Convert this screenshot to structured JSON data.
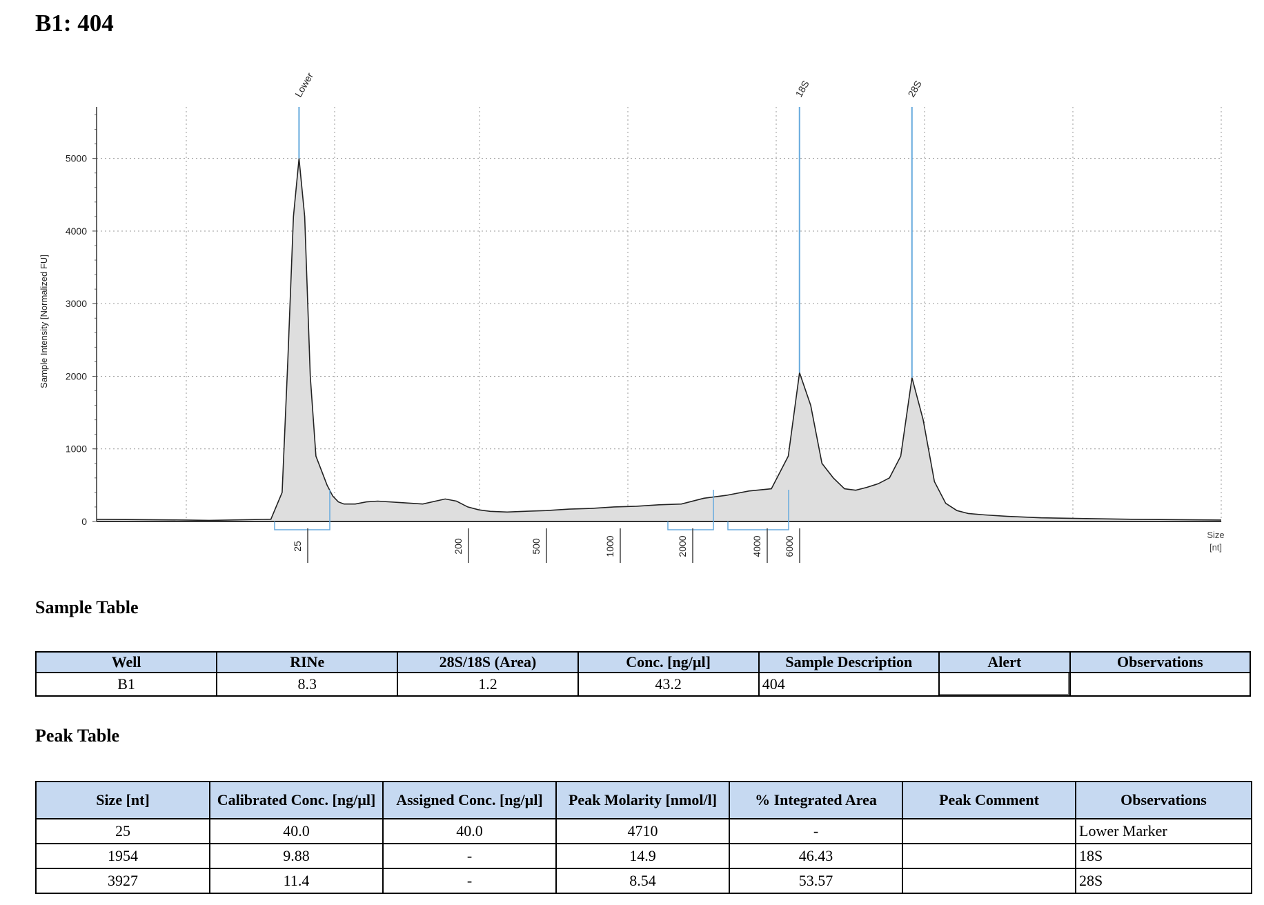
{
  "title": "B1: 404",
  "chart_data": {
    "type": "line",
    "title": "",
    "ylabel": "Sample Intensity [Normalized FU]",
    "xlabel": "Size\n[nt]",
    "xlabel_lines": [
      "Size",
      "[nt]"
    ],
    "ylim": [
      0,
      5700
    ],
    "y_ticks": [
      0,
      1000,
      2000,
      3000,
      4000,
      5000
    ],
    "x_ticks": [
      "25",
      "200",
      "500",
      "1000",
      "2000",
      "4000",
      "6000"
    ],
    "grid": true,
    "series": [
      {
        "values_x_percent_of_axis": [
          0,
          8,
          10,
          15.5,
          16.5,
          17,
          17.5,
          18,
          18.5,
          19,
          19.5,
          20,
          20.5,
          21,
          21.5,
          22,
          23,
          24,
          25,
          27,
          29,
          31,
          32,
          33,
          34,
          35,
          36.5,
          38,
          40,
          42,
          44,
          46,
          48,
          50,
          52,
          54,
          56,
          58,
          60,
          61.5,
          62.5,
          63.5,
          64.5,
          65.5,
          66.5,
          67.5,
          68.5,
          69.5,
          70.5,
          71.5,
          72.5,
          73.5,
          74.5,
          75.5,
          76.5,
          77.5,
          79,
          81,
          84,
          88,
          92,
          100
        ],
        "values": [
          30,
          20,
          15,
          30,
          400,
          2200,
          4200,
          5000,
          4200,
          2000,
          900,
          700,
          500,
          350,
          270,
          240,
          240,
          270,
          280,
          260,
          240,
          310,
          280,
          200,
          160,
          140,
          130,
          140,
          150,
          170,
          180,
          200,
          210,
          230,
          240,
          320,
          360,
          420,
          450,
          900,
          2050,
          1600,
          800,
          600,
          450,
          430,
          470,
          520,
          600,
          900,
          1980,
          1400,
          550,
          250,
          150,
          110,
          90,
          70,
          50,
          40,
          30,
          20
        ]
      }
    ],
    "peak_labels": [
      "Lower",
      "18S",
      "28S"
    ],
    "peak_positions": [
      18,
      62.5,
      72.5
    ],
    "peak_heights": [
      5000,
      2050,
      1980
    ]
  },
  "sample_table": {
    "heading": "Sample Table",
    "headers": [
      "Well",
      "RINe",
      "28S/18S (Area)",
      "Conc. [ng/µl]",
      "Sample Description",
      "Alert",
      "Observations"
    ],
    "rows": [
      [
        "B1",
        "8.3",
        "1.2",
        "43.2",
        "404",
        "",
        ""
      ]
    ]
  },
  "peak_table": {
    "heading": "Peak Table",
    "headers": [
      "Size [nt]",
      "Calibrated Conc. [ng/µl]",
      "Assigned Conc. [ng/µl]",
      "Peak Molarity [nmol/l]",
      "% Integrated Area",
      "Peak Comment",
      "Observations"
    ],
    "rows": [
      [
        "25",
        "40.0",
        "40.0",
        "4710",
        "-",
        "",
        "Lower Marker"
      ],
      [
        "1954",
        "9.88",
        "-",
        "14.9",
        "46.43",
        "",
        "18S"
      ],
      [
        "3927",
        "11.4",
        "-",
        "8.54",
        "53.57",
        "",
        "28S"
      ]
    ]
  },
  "colors": {
    "marker": "#66aadd",
    "fill": "#dedede",
    "line": "#222222",
    "header_bg": "#c6d9f1"
  }
}
